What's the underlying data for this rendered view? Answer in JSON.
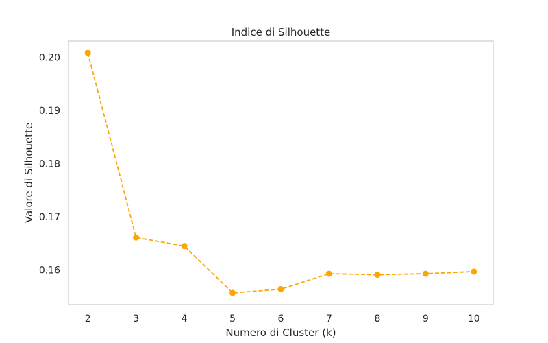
{
  "chart_data": {
    "type": "line",
    "title": "Indice di Silhouette",
    "xlabel": "Numero di Cluster (k)",
    "ylabel": "Valore di Silhouette",
    "x": [
      2,
      3,
      4,
      5,
      6,
      7,
      8,
      9,
      10
    ],
    "series": [
      {
        "values": [
          0.2008,
          0.1661,
          0.1645,
          0.1557,
          0.1564,
          0.1593,
          0.1591,
          0.1593,
          0.1597
        ],
        "color": "#FFA500",
        "line_style": "dashed",
        "marker": "circle"
      }
    ],
    "xticks": [
      2,
      3,
      4,
      5,
      6,
      7,
      8,
      9,
      10
    ],
    "yticks": [
      0.16,
      0.17,
      0.18,
      0.19,
      0.2
    ],
    "ytick_labels": [
      "0.16",
      "0.17",
      "0.18",
      "0.19",
      "0.20"
    ],
    "xlim": [
      1.6,
      10.4
    ],
    "ylim": [
      0.1535,
      0.203
    ],
    "grid": false,
    "frame_color": "#cccccc"
  }
}
